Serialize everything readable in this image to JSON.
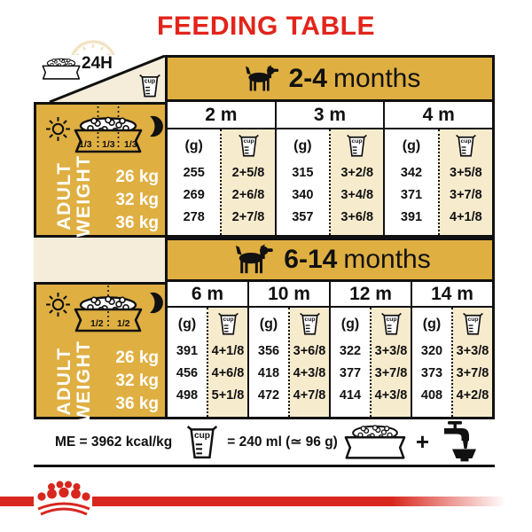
{
  "title": "FEEDING TABLE",
  "colors": {
    "red": "#E2241B",
    "logo_red": "#D8271E",
    "gold": "#DFAF42",
    "beige": "#F7EBCE",
    "light_beige": "#F5EDDA",
    "line": "#111111"
  },
  "top_legend": {
    "daily_label": "24H"
  },
  "cup_label": "cup",
  "grams_label": "(g)",
  "adult_weight": {
    "line1": "ADULT",
    "line2": "WEIGHT"
  },
  "weights": [
    "26 kg",
    "32 kg",
    "36 kg"
  ],
  "portions_puppy": [
    "1/3",
    "1/3",
    "1/3"
  ],
  "portions_junior": [
    "1/2",
    "1/2"
  ],
  "table1": {
    "age_range": "2-4",
    "age_unit": "months",
    "columns": [
      {
        "month": "2 m",
        "g": [
          "255",
          "269",
          "278"
        ],
        "cups": [
          "2+5/8",
          "2+6/8",
          "2+7/8"
        ]
      },
      {
        "month": "3 m",
        "g": [
          "315",
          "340",
          "357"
        ],
        "cups": [
          "3+2/8",
          "3+4/8",
          "3+6/8"
        ]
      },
      {
        "month": "4 m",
        "g": [
          "342",
          "371",
          "391"
        ],
        "cups": [
          "3+5/8",
          "3+7/8",
          "4+1/8"
        ]
      }
    ]
  },
  "table2": {
    "age_range": "6-14",
    "age_unit": "months",
    "columns": [
      {
        "month": "6 m",
        "g": [
          "391",
          "456",
          "498"
        ],
        "cups": [
          "4+1/8",
          "4+6/8",
          "5+1/8"
        ]
      },
      {
        "month": "10 m",
        "g": [
          "356",
          "418",
          "472"
        ],
        "cups": [
          "3+6/8",
          "4+3/8",
          "4+7/8"
        ]
      },
      {
        "month": "12 m",
        "g": [
          "322",
          "377",
          "414"
        ],
        "cups": [
          "3+3/8",
          "3+7/8",
          "4+3/8"
        ]
      },
      {
        "month": "14 m",
        "g": [
          "320",
          "373",
          "408"
        ],
        "cups": [
          "3+3/8",
          "3+7/8",
          "4+2/8"
        ]
      }
    ]
  },
  "footer": {
    "me_text": "ME = 3962 kcal/kg",
    "cup_equals": "= 240 ml (≃ 96 g)",
    "plus": "+"
  }
}
